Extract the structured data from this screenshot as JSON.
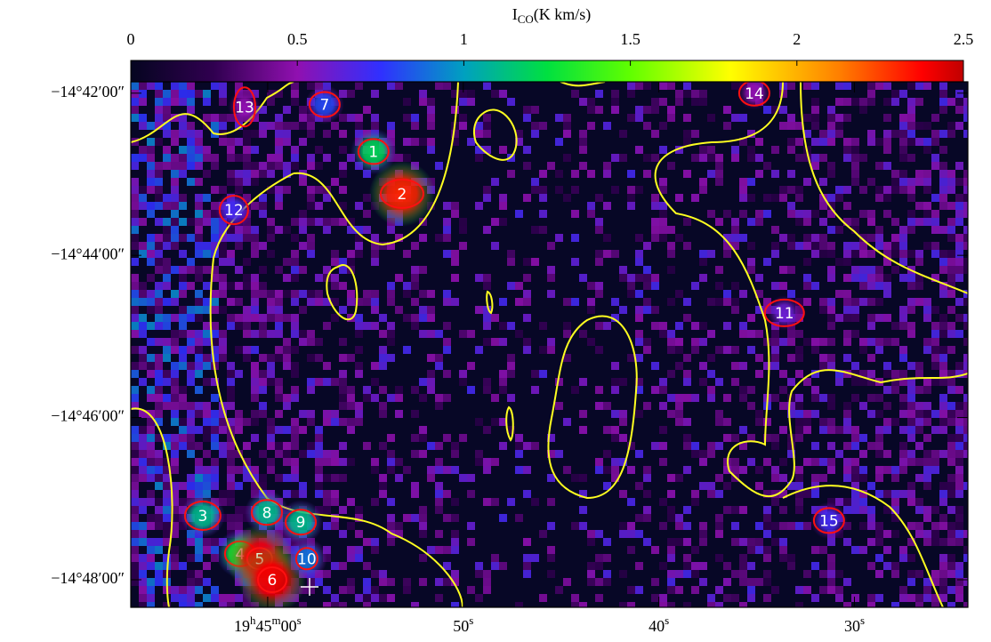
{
  "chart_data": {
    "type": "image",
    "colorbar": {
      "label": "ICO(K km/s)",
      "lim": [
        0,
        2.5
      ],
      "ticks": [
        0,
        0.5,
        1,
        1.5,
        2,
        2.5
      ]
    },
    "xlim": [
      67,
      24.2
    ],
    "xticks": [
      {
        "value": 60,
        "label": "19h45m00s"
      },
      {
        "value": 50,
        "label": "50s"
      },
      {
        "value": 40,
        "label": "40s"
      },
      {
        "value": 30,
        "label": "30s"
      }
    ],
    "ylim": [
      48.34,
      41.86
    ],
    "yticks": [
      {
        "value": 42,
        "label": "−14°42′00″"
      },
      {
        "value": 44,
        "label": "−14°44′00″"
      },
      {
        "value": 46,
        "label": "−14°46′00″"
      },
      {
        "value": 48,
        "label": "−14°48′00″"
      }
    ],
    "clumps": [
      {
        "label": "1",
        "ra": 54.59,
        "dec": 42.72,
        "peak": 1.2
      },
      {
        "label": "2",
        "ra": 53.13,
        "dec": 43.24,
        "peak": 2.3
      },
      {
        "label": "3",
        "ra": 63.32,
        "dec": 47.21,
        "peak": 1.1
      },
      {
        "label": "4",
        "ra": 61.41,
        "dec": 47.68,
        "peak": 1.3
      },
      {
        "label": "5",
        "ra": 60.41,
        "dec": 47.74,
        "peak": 2.4
      },
      {
        "label": "6",
        "ra": 59.77,
        "dec": 48.0,
        "peak": 2.4
      },
      {
        "label": "7",
        "ra": 57.09,
        "dec": 42.14,
        "peak": 0.8
      },
      {
        "label": "8",
        "ra": 60.04,
        "dec": 47.17,
        "peak": 1.1
      },
      {
        "label": "9",
        "ra": 58.31,
        "dec": 47.29,
        "peak": 1.1
      },
      {
        "label": "10",
        "ra": 58.0,
        "dec": 47.74,
        "peak": 0.9
      },
      {
        "label": "11",
        "ra": 33.58,
        "dec": 44.71,
        "peak": 0.6
      },
      {
        "label": "12",
        "ra": 61.73,
        "dec": 43.44,
        "peak": 0.7
      },
      {
        "label": "13",
        "ra": 61.18,
        "dec": 42.17,
        "peak": 0.5
      },
      {
        "label": "14",
        "ra": 35.12,
        "dec": 42.0,
        "peak": 0.5
      },
      {
        "label": "15",
        "ra": 31.3,
        "dec": 47.27,
        "peak": 0.7
      }
    ]
  }
}
